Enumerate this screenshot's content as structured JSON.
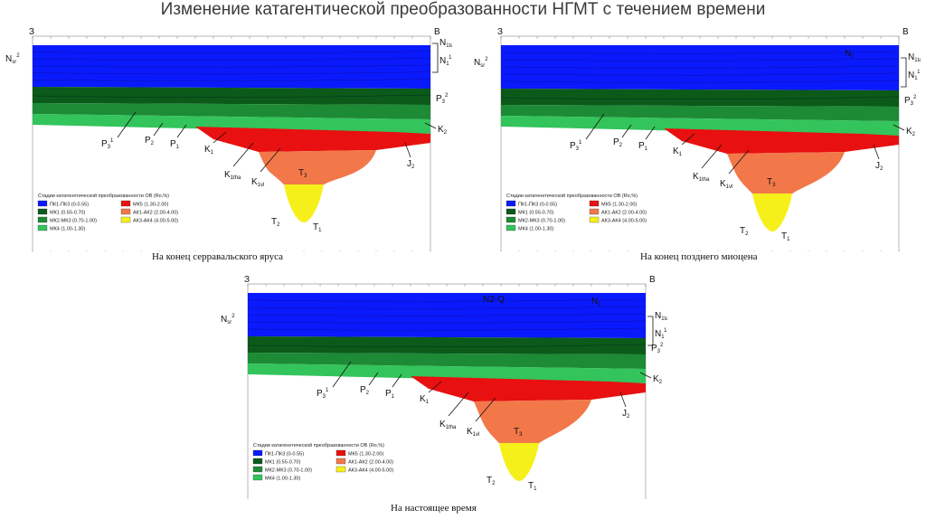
{
  "title": "Изменение катагентической преобразованности НГМТ с течением времени",
  "panels": [
    {
      "id": "p1",
      "caption": "На конец серравальского яруса",
      "west": "З",
      "east": "В"
    },
    {
      "id": "p2",
      "caption": "На конец позднего миоцена",
      "west": "З",
      "east": "В"
    },
    {
      "id": "p3",
      "caption": "На настоящее время",
      "west": "З",
      "east": "В"
    }
  ],
  "legend": {
    "title": "Стадии катагенетической преобразованности ОВ (Ro,%)",
    "items": [
      {
        "label": "ПК1-ПК3 (0-0.55)",
        "color": "#0a1aff"
      },
      {
        "label": "МК1 (0.55-0.70)",
        "color": "#0b5a1a"
      },
      {
        "label": "МК2-МК3 (0.70-1.00)",
        "color": "#1d8a36"
      },
      {
        "label": "МК4 (1.00-1.30)",
        "color": "#33c45c"
      },
      {
        "label": "МК5 (1.30-2.00)",
        "color": "#e81010"
      },
      {
        "label": "АК1-АК2 (2.00-4.00)",
        "color": "#f2784a"
      },
      {
        "label": "АК3-АК4 (4.00-5.00)",
        "color": "#f6f01a"
      }
    ]
  },
  "strat_labels": {
    "N1sr": "N1sr",
    "N1sr_sup": "2",
    "N1ta": "N1ta",
    "N1ta_sup": "2",
    "N1": "N1",
    "N1_sup": "1",
    "P3_2": "P3",
    "P3_2_sup": "2",
    "P3_1": "P3",
    "P3_1_sup": "1",
    "P2": "P2",
    "P1": "P1",
    "K2": "K2",
    "K1": "K1",
    "K1tha": "K1tha",
    "K1vl": "K1vl",
    "J2": "J2",
    "T3": "T3",
    "T2": "T2",
    "T1": "T1",
    "N2": "N2",
    "N2Q": "N2-Q"
  }
}
